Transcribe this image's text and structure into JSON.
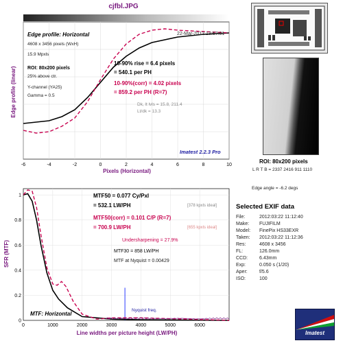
{
  "file_title": "cjfbl.JPG",
  "colors": {
    "black": "#000000",
    "magenta": "#c8004e",
    "purple": "#7a1b80",
    "blue": "#1a1aa0",
    "gray": "#888888"
  },
  "edge": {
    "title": "Edge profile: Horizontal",
    "timestamp": "22-Mar-2012 13:57:01",
    "size": "4608 x 3456 pixels (WxH)",
    "mpxls": "15.9 Mpxls",
    "roi": "ROI: 80x200 pixels",
    "roi_pos": "25% above ctr.",
    "channel": "Y-channel (YA25)",
    "gamma": "Gamma = 0.5",
    "rise": "10-90% rise = 6.4 pixels",
    "rise_ph": "= 540.1 per PH",
    "rise_corr": "10-90%(corr) = 4.02 pixels",
    "rise_corr_ph": "= 859.2 per PH  (R=7)",
    "dk_lt": "Dk, lt lvls = 15.8, 211.4",
    "lt_dk": "Lt/dk = 13.3",
    "brand": "Imatest 2.2.3 Pro",
    "ylabel": "Edge profile (linear)",
    "xlabel": "Pixels (Horizontal)",
    "xticks": [
      "-6",
      "-4",
      "-2",
      "0",
      "2",
      "4",
      "6",
      "8",
      "10"
    ]
  },
  "roi_panel": {
    "label": "ROI: 80x200 pixels",
    "lrtb": "L R T B = 2337 2416  911 1110",
    "edge_angle": "Edge angle = -6.2 degs"
  },
  "mtf": {
    "mtf50": "MTF50 = 0.077 Cy/Pxl",
    "mtf50_lw": "= 532.1 LW/PH",
    "mtf50_ideal": "[378 kpxls ideal]",
    "mtf50c": "MTF50(corr) = 0.101 C/P  (R=7)",
    "mtf50c_lw": "= 700.9 LW/PH",
    "mtf50c_ideal": "[655 kpxls ideal]",
    "undersharp": "Undersharpening = 27.9%",
    "mtf30": "MTF30 = 858 LW/PH",
    "nyq_mtf": "MTF at Nyquist = 0.00429",
    "nyquist_label": "Nyquist freq.",
    "title": "MTF: Horizontal",
    "ylabel": "SFR (MTF)",
    "xlabel": "Line widths per picture height (LW/PH)",
    "xticks": [
      "0",
      "1000",
      "2000",
      "3000",
      "4000",
      "5000",
      "6000"
    ],
    "yticks": [
      "0",
      "0.2",
      "0.4",
      "0.6",
      "0.8",
      "1"
    ]
  },
  "exif": {
    "title": "Selected EXIF data",
    "rows": [
      {
        "k": "File:",
        "v": "2012:03:22 11:12:40"
      },
      {
        "k": "Make:",
        "v": "FUJIFILM"
      },
      {
        "k": "Model:",
        "v": "FinePix HS33EXR"
      },
      {
        "k": "Taken:",
        "v": "2012:03:22 11:12:36"
      },
      {
        "k": "Res:",
        "v": "4608 x 3456"
      },
      {
        "k": "FL:",
        "v": "126.0mm"
      },
      {
        "k": "CCD:",
        "v": "6.43mm"
      },
      {
        "k": "Exp:",
        "v": "0.050 s  (1/20)"
      },
      {
        "k": "Aper:",
        "v": "f/5.6"
      },
      {
        "k": "ISO:",
        "v": "100"
      }
    ]
  },
  "logo_text": "Imatest",
  "chart_data": [
    {
      "type": "line",
      "title": "Edge profile: Horizontal",
      "xlabel": "Pixels (Horizontal)",
      "ylabel": "Edge profile (linear)",
      "xlim": [
        -6,
        10
      ],
      "series": [
        {
          "values": [
            [
              -6,
              0.26
            ],
            [
              -4,
              0.28
            ],
            [
              -3,
              0.31
            ],
            [
              -2,
              0.36
            ],
            [
              -1,
              0.45
            ],
            [
              0,
              0.56
            ],
            [
              1,
              0.67
            ],
            [
              2,
              0.75
            ],
            [
              3,
              0.81
            ],
            [
              4,
              0.85
            ],
            [
              6,
              0.89
            ],
            [
              8,
              0.91
            ],
            [
              10,
              0.92
            ]
          ]
        },
        {
          "values": [
            [
              -6,
              0.21
            ],
            [
              -5,
              0.19
            ],
            [
              -4,
              0.2
            ],
            [
              -3,
              0.24
            ],
            [
              -2,
              0.3
            ],
            [
              -1,
              0.42
            ],
            [
              0,
              0.58
            ],
            [
              1,
              0.73
            ],
            [
              2,
              0.84
            ],
            [
              3,
              0.91
            ],
            [
              4,
              0.94
            ],
            [
              5,
              0.95
            ],
            [
              6,
              0.94
            ],
            [
              8,
              0.93
            ],
            [
              10,
              0.92
            ]
          ]
        }
      ]
    },
    {
      "type": "line",
      "title": "MTF: Horizontal",
      "xlabel": "Line widths per picture height (LW/PH)",
      "ylabel": "SFR (MTF)",
      "xlim": [
        0,
        7000
      ],
      "ylim": [
        0,
        1.05
      ],
      "series": [
        {
          "values": [
            [
              0,
              1.0
            ],
            [
              150,
              1.01
            ],
            [
              300,
              0.95
            ],
            [
              450,
              0.8
            ],
            [
              600,
              0.6
            ],
            [
              800,
              0.38
            ],
            [
              1000,
              0.24
            ],
            [
              1200,
              0.17
            ],
            [
              1500,
              0.1
            ],
            [
              2000,
              0.03
            ],
            [
              3000,
              0.01
            ],
            [
              4000,
              0.005
            ],
            [
              7000,
              0
            ]
          ]
        },
        {
          "values": [
            [
              0,
              1.0
            ],
            [
              150,
              1.04
            ],
            [
              300,
              1.03
            ],
            [
              450,
              0.9
            ],
            [
              600,
              0.68
            ],
            [
              800,
              0.42
            ],
            [
              1000,
              0.29
            ],
            [
              1150,
              0.28
            ],
            [
              1300,
              0.31
            ],
            [
              1450,
              0.27
            ],
            [
              1700,
              0.15
            ],
            [
              2000,
              0.05
            ],
            [
              2500,
              0.01
            ],
            [
              3000,
              0.02
            ],
            [
              4000,
              0.02
            ],
            [
              7000,
              0
            ]
          ]
        }
      ]
    }
  ]
}
